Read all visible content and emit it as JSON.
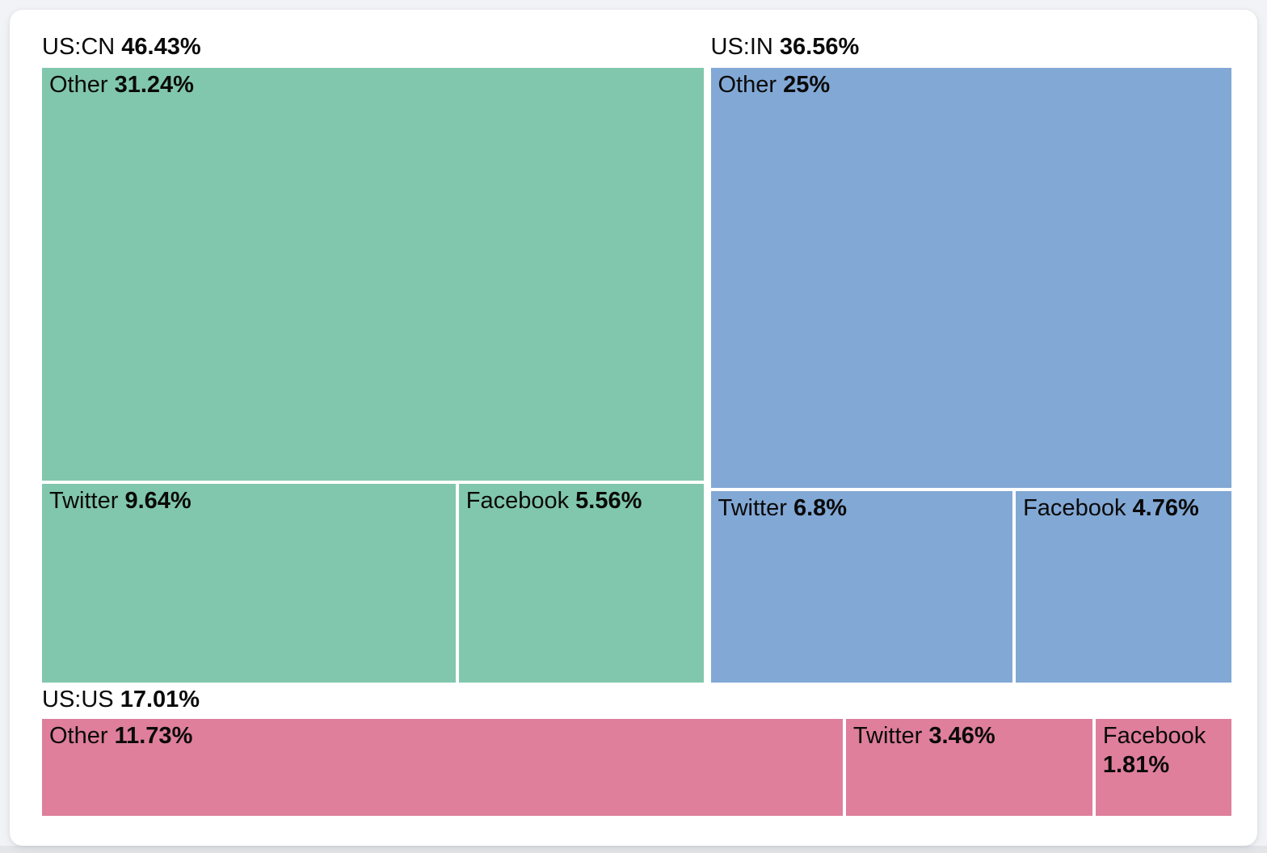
{
  "page": {
    "background_color": "#f2f3f6",
    "card_background_color": "#ffffff",
    "bottom_strip_color": "#e3e5e9"
  },
  "chart_data": {
    "type": "treemap",
    "title": "",
    "unit": "%",
    "legend_position": "none",
    "layout_hint": "US:CN and US:IN side-by-side in top row; US:US full-width bottom row; each group label above its tiles; white gaps between tiles",
    "groups": [
      {
        "label": "US:CN",
        "pct_label": "46.43%",
        "value": 46.43,
        "color": "#81c7ad",
        "children": [
          {
            "name": "Other",
            "pct_label": "31.24%",
            "value": 31.24
          },
          {
            "name": "Twitter",
            "pct_label": "9.64%",
            "value": 9.64
          },
          {
            "name": "Facebook",
            "pct_label": "5.56%",
            "value": 5.56
          }
        ]
      },
      {
        "label": "US:IN",
        "pct_label": "36.56%",
        "value": 36.56,
        "color": "#82a8d5",
        "children": [
          {
            "name": "Other",
            "pct_label": "25%",
            "value": 25
          },
          {
            "name": "Twitter",
            "pct_label": "6.8%",
            "value": 6.8
          },
          {
            "name": "Facebook",
            "pct_label": "4.76%",
            "value": 4.76
          }
        ]
      },
      {
        "label": "US:US",
        "pct_label": "17.01%",
        "value": 17.01,
        "color": "#df7f9c",
        "children": [
          {
            "name": "Other",
            "pct_label": "11.73%",
            "value": 11.73
          },
          {
            "name": "Twitter",
            "pct_label": "3.46%",
            "value": 3.46
          },
          {
            "name": "Facebook",
            "pct_label": "1.81%",
            "value": 1.81
          }
        ]
      }
    ]
  }
}
